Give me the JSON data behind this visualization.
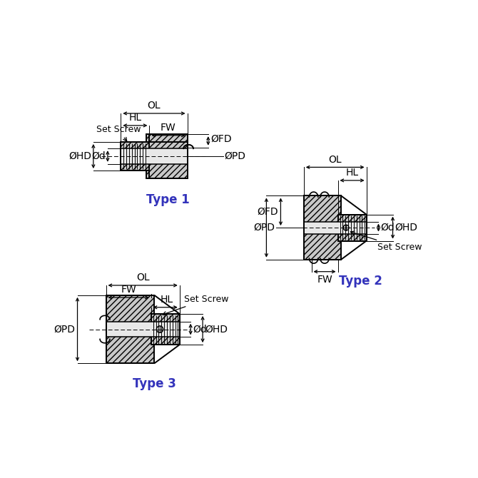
{
  "bg_color": "#ffffff",
  "line_color": "#000000",
  "hatch_color": "#000000",
  "dim_color": "#000000",
  "type_color": "#3333bb",
  "type1_label": "Type 1",
  "type2_label": "Type 2",
  "type3_label": "Type 3",
  "label_fontsize": 10,
  "type_fontsize": 12,
  "annotation_fontsize": 9,
  "line_width": 1.4,
  "hatch_pattern": "////",
  "face_color": "#c8c8c8",
  "bore_color": "#e8e8e8"
}
